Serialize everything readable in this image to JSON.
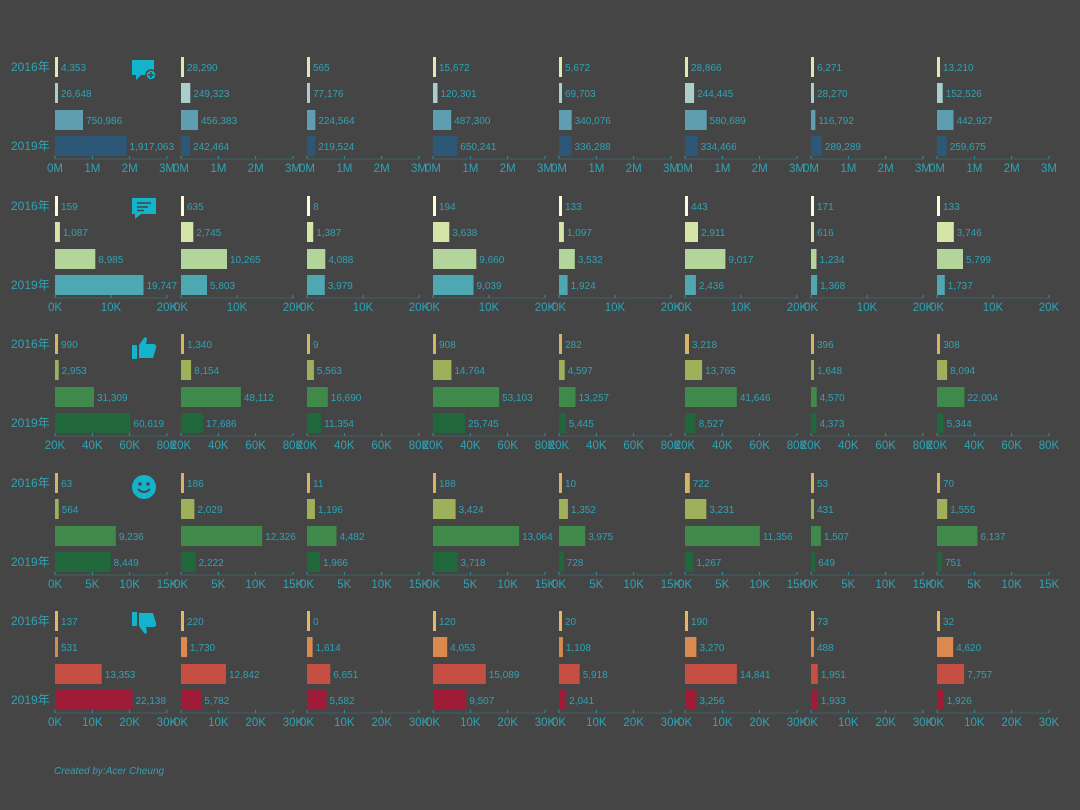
{
  "chart_data": {
    "type": "bar",
    "years": [
      "2016年",
      "2019年"
    ],
    "icons": [
      "speech-bubble-plus-icon",
      "speech-bubble-lines-icon",
      "thumbs-up-icon",
      "smiley-face-icon",
      "thumbs-down-icon"
    ],
    "rows": [
      {
        "icon": "speech-bubble-plus-icon",
        "xlim": [
          0,
          3000000
        ],
        "ticks": [
          "0M",
          "1M",
          "2M",
          "3M"
        ],
        "panels": [
          [
            4353,
            26648,
            750986,
            1917063
          ],
          [
            28290,
            249323,
            456383,
            242464
          ],
          [
            565,
            77176,
            224564,
            219524
          ],
          [
            15672,
            120301,
            487300,
            650241
          ],
          [
            5672,
            69703,
            340076,
            336288
          ],
          [
            28866,
            244445,
            580689,
            334466
          ],
          [
            6271,
            28270,
            116792,
            289289
          ],
          [
            13210,
            152526,
            442927,
            259675
          ]
        ]
      },
      {
        "icon": "speech-bubble-lines-icon",
        "xlim": [
          0,
          25000
        ],
        "ticks": [
          "0K",
          "10K",
          "20K"
        ],
        "panels": [
          [
            159,
            1087,
            8985,
            19747
          ],
          [
            635,
            2745,
            10265,
            5803
          ],
          [
            8,
            1387,
            4088,
            3979
          ],
          [
            194,
            3638,
            9660,
            9039
          ],
          [
            133,
            1097,
            3532,
            1924
          ],
          [
            443,
            2911,
            9017,
            2436
          ],
          [
            171,
            616,
            1234,
            1368
          ],
          [
            133,
            3746,
            5799,
            1737
          ]
        ]
      },
      {
        "icon": "thumbs-up-icon",
        "xlim": [
          0,
          90000
        ],
        "ticks": [
          "20K",
          "40K",
          "60K",
          "80K"
        ],
        "panels": [
          [
            990,
            2953,
            31309,
            60619
          ],
          [
            1340,
            8154,
            48112,
            17686
          ],
          [
            9,
            5563,
            16690,
            11354
          ],
          [
            908,
            14764,
            53103,
            25745
          ],
          [
            282,
            4597,
            13257,
            5445
          ],
          [
            3218,
            13765,
            41646,
            8527
          ],
          [
            396,
            1648,
            4570,
            4373
          ],
          [
            308,
            8094,
            22004,
            5344
          ]
        ]
      },
      {
        "icon": "smiley-face-icon",
        "xlim": [
          0,
          17000
        ],
        "ticks": [
          "0K",
          "5K",
          "10K",
          "15K"
        ],
        "panels": [
          [
            63,
            564,
            9236,
            8449
          ],
          [
            186,
            2029,
            12326,
            2222
          ],
          [
            11,
            1196,
            4482,
            1966
          ],
          [
            188,
            3424,
            13064,
            3718
          ],
          [
            10,
            1352,
            3975,
            728
          ],
          [
            722,
            3231,
            11356,
            1267
          ],
          [
            53,
            431,
            1507,
            649
          ],
          [
            70,
            1555,
            6137,
            751
          ]
        ]
      },
      {
        "icon": "thumbs-down-icon",
        "xlim": [
          0,
          32000
        ],
        "ticks": [
          "0K",
          "10K",
          "20K",
          "30K"
        ],
        "panels": [
          [
            137,
            531,
            13353,
            22138
          ],
          [
            220,
            1730,
            12842,
            5782
          ],
          [
            0,
            1614,
            6651,
            5582
          ],
          [
            120,
            4053,
            15089,
            9507
          ],
          [
            20,
            1108,
            5918,
            2041
          ],
          [
            190,
            3270,
            14841,
            3256
          ],
          [
            73,
            488,
            1951,
            1933
          ],
          [
            32,
            4620,
            7757,
            1926
          ]
        ]
      }
    ],
    "colors": {
      "row1": [
        "#dfe9b4",
        "#a8cfcb",
        "#5e9eb0",
        "#2c5777"
      ],
      "row2": [
        "#fbfbd6",
        "#d5e5a8",
        "#b3d49b",
        "#4ea8b2"
      ],
      "row3": [
        "#d3b563",
        "#9fb05a",
        "#3f8a4a",
        "#20673c"
      ],
      "row4": [
        "#d3b563",
        "#9fb05a",
        "#3f8a4a",
        "#20673c"
      ],
      "row5": [
        "#e8b765",
        "#da8a4e",
        "#c44f42",
        "#9e1c38"
      ]
    },
    "value_color": "#2fa3b5"
  },
  "footer": {
    "credit": "Created by:Acer Cheung"
  }
}
